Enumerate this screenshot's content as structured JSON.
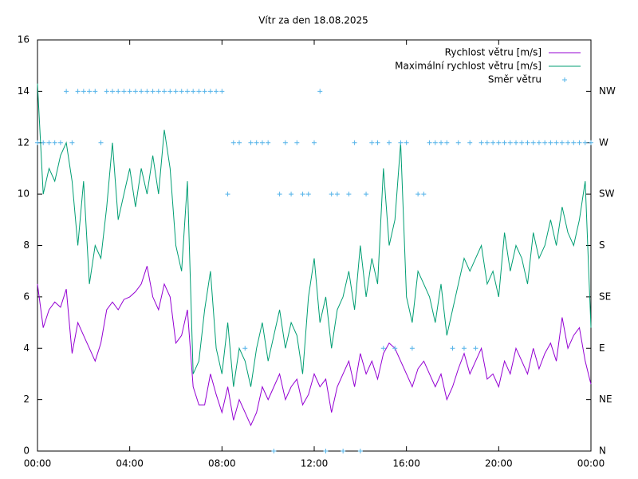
{
  "chart_data": {
    "type": "line",
    "title": "Vítr za den 18.08.2025",
    "x": [
      0,
      0.25,
      0.5,
      0.75,
      1,
      1.25,
      1.5,
      1.75,
      2,
      2.25,
      2.5,
      2.75,
      3,
      3.25,
      3.5,
      3.75,
      4,
      4.25,
      4.5,
      4.75,
      5,
      5.25,
      5.5,
      5.75,
      6,
      6.25,
      6.5,
      6.75,
      7,
      7.25,
      7.5,
      7.75,
      8,
      8.25,
      8.5,
      8.75,
      9,
      9.25,
      9.5,
      9.75,
      10,
      10.25,
      10.5,
      10.75,
      11,
      11.25,
      11.5,
      11.75,
      12,
      12.25,
      12.5,
      12.75,
      13,
      13.25,
      13.5,
      13.75,
      14,
      14.25,
      14.5,
      14.75,
      15,
      15.25,
      15.5,
      15.75,
      16,
      16.25,
      16.5,
      16.75,
      17,
      17.25,
      17.5,
      17.75,
      18,
      18.25,
      18.5,
      18.75,
      19,
      19.25,
      19.5,
      19.75,
      20,
      20.25,
      20.5,
      20.75,
      21,
      21.25,
      21.5,
      21.75,
      22,
      22.25,
      22.5,
      22.75,
      23,
      23.25,
      23.5,
      23.75,
      24
    ],
    "series": [
      {
        "name": "Rychlost větru [m/s]",
        "color": "#9400d3",
        "style": "line",
        "values": [
          6.5,
          4.8,
          5.5,
          5.8,
          5.6,
          6.3,
          3.8,
          5.0,
          4.5,
          4.0,
          3.5,
          4.2,
          5.5,
          5.8,
          5.5,
          5.9,
          6.0,
          6.2,
          6.5,
          7.2,
          6.0,
          5.5,
          6.5,
          6.0,
          4.2,
          4.5,
          5.5,
          2.5,
          1.8,
          1.8,
          3.0,
          2.2,
          1.5,
          2.5,
          1.2,
          2.0,
          1.5,
          1.0,
          1.5,
          2.5,
          2.0,
          2.5,
          3.0,
          2.0,
          2.5,
          2.8,
          1.8,
          2.2,
          3.0,
          2.5,
          2.8,
          1.5,
          2.5,
          3.0,
          3.5,
          2.5,
          3.8,
          3.0,
          3.5,
          2.8,
          3.8,
          4.2,
          4.0,
          3.5,
          3.0,
          2.5,
          3.2,
          3.5,
          3.0,
          2.5,
          3.0,
          2.0,
          2.5,
          3.2,
          3.8,
          3.0,
          3.5,
          4.0,
          2.8,
          3.0,
          2.5,
          3.5,
          3.0,
          4.0,
          3.5,
          3.0,
          4.0,
          3.2,
          3.8,
          4.2,
          3.5,
          5.2,
          4.0,
          4.5,
          4.8,
          3.5,
          2.6
        ]
      },
      {
        "name": "Maximální rychlost větru [m/s]",
        "color": "#009e73",
        "style": "line",
        "values": [
          14.3,
          10.0,
          11.0,
          10.5,
          11.5,
          12.0,
          10.5,
          8.0,
          10.5,
          6.5,
          8.0,
          7.5,
          9.5,
          12.0,
          9.0,
          10.0,
          11.0,
          9.5,
          11.0,
          10.0,
          11.5,
          10.0,
          12.5,
          11.0,
          8.0,
          7.0,
          10.5,
          3.0,
          3.5,
          5.5,
          7.0,
          4.0,
          3.0,
          5.0,
          2.5,
          4.0,
          3.5,
          2.5,
          4.0,
          5.0,
          3.5,
          4.5,
          5.5,
          4.0,
          5.0,
          4.5,
          3.0,
          6.0,
          7.5,
          5.0,
          6.0,
          4.0,
          5.5,
          6.0,
          7.0,
          5.5,
          8.0,
          6.0,
          7.5,
          6.5,
          11.0,
          8.0,
          9.0,
          12.0,
          6.0,
          5.0,
          7.0,
          6.5,
          6.0,
          5.0,
          6.5,
          4.5,
          5.5,
          6.5,
          7.5,
          7.0,
          7.5,
          8.0,
          6.5,
          7.0,
          6.0,
          8.5,
          7.0,
          8.0,
          7.5,
          6.5,
          8.5,
          7.5,
          8.0,
          9.0,
          8.0,
          9.5,
          8.5,
          8.0,
          9.0,
          10.5,
          4.8
        ]
      },
      {
        "name": "Směr větru",
        "color": "#56b4e9",
        "style": "points",
        "axis": "y2",
        "values": [
          12,
          12,
          12,
          12,
          12,
          14,
          12,
          14,
          14,
          14,
          14,
          12,
          14,
          14,
          14,
          14,
          14,
          14,
          14,
          14,
          14,
          14,
          14,
          14,
          14,
          14,
          14,
          14,
          14,
          14,
          14,
          14,
          14,
          10,
          12,
          12,
          4,
          12,
          12,
          12,
          12,
          0,
          10,
          12,
          10,
          12,
          10,
          10,
          12,
          14,
          0,
          10,
          10,
          0,
          10,
          12,
          0,
          10,
          12,
          12,
          4,
          12,
          4,
          12,
          12,
          4,
          10,
          10,
          12,
          12,
          12,
          12,
          4,
          12,
          4,
          12,
          4,
          12,
          12,
          12,
          12,
          12,
          12,
          12,
          12,
          12,
          12,
          12,
          12,
          12,
          12,
          12,
          12,
          12,
          12,
          12,
          12
        ]
      }
    ],
    "xlim": [
      0,
      24
    ],
    "xticks": [
      {
        "value": 0,
        "label": "00:00"
      },
      {
        "value": 4,
        "label": "04:00"
      },
      {
        "value": 8,
        "label": "08:00"
      },
      {
        "value": 12,
        "label": "12:00"
      },
      {
        "value": 16,
        "label": "16:00"
      },
      {
        "value": 20,
        "label": "20:00"
      },
      {
        "value": 24,
        "label": "00:00"
      }
    ],
    "ylim": [
      0,
      16
    ],
    "yticks": [
      0,
      2,
      4,
      6,
      8,
      10,
      12,
      14,
      16
    ],
    "y2lim": [
      0,
      16
    ],
    "y2ticks": [
      {
        "value": 0,
        "label": "N"
      },
      {
        "value": 2,
        "label": "NE"
      },
      {
        "value": 4,
        "label": "E"
      },
      {
        "value": 6,
        "label": "SE"
      },
      {
        "value": 8,
        "label": "S"
      },
      {
        "value": 10,
        "label": "SW"
      },
      {
        "value": 12,
        "label": "W"
      },
      {
        "value": 14,
        "label": "NW"
      }
    ],
    "grid": false,
    "legend": "top-right"
  }
}
